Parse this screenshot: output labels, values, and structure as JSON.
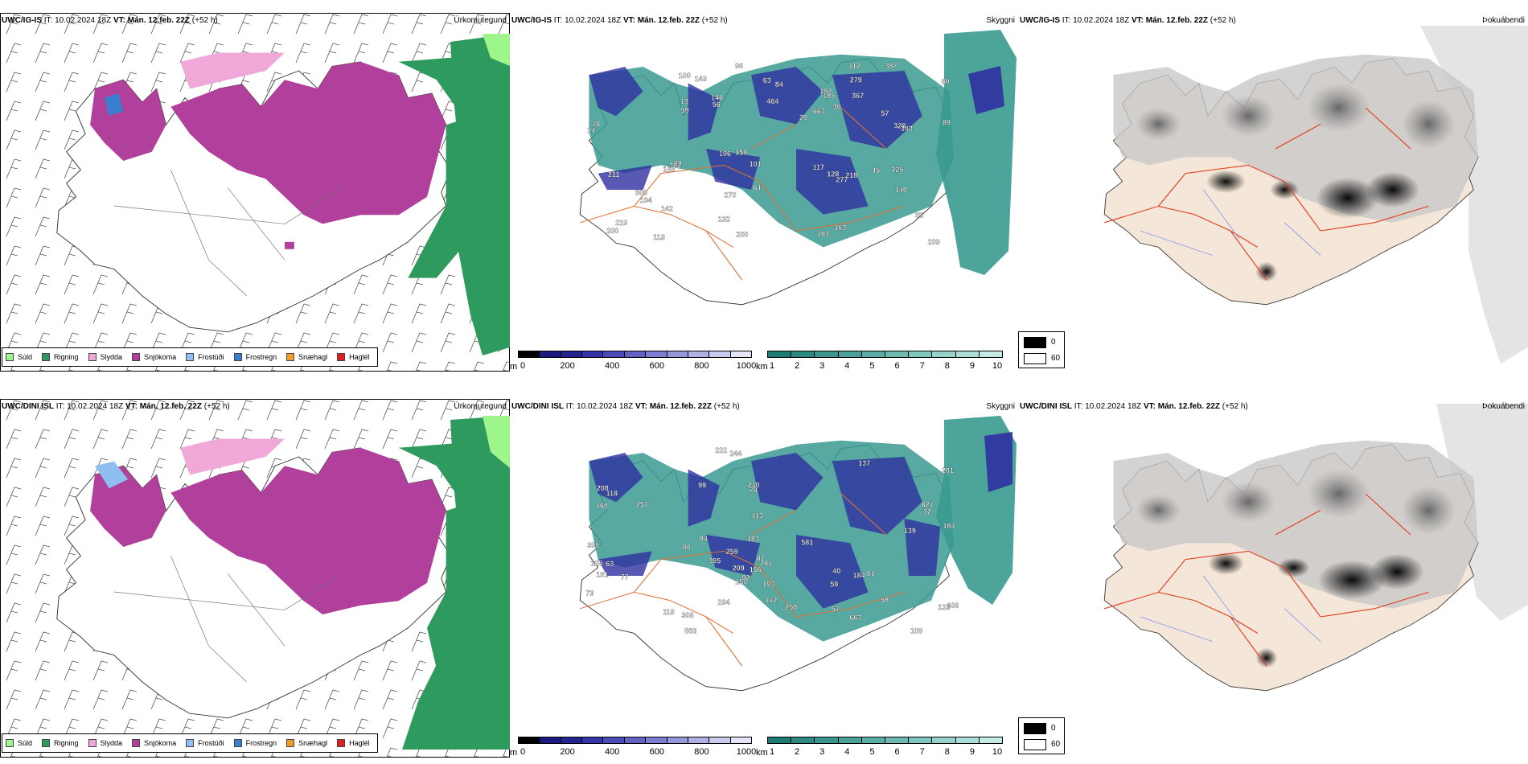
{
  "colors": {
    "sudd": "#9ef58c",
    "rigning": "#2f9a5e",
    "slydda": "#f0a8d8",
    "snjokoma": "#b0409c",
    "frostudi": "#8fbff0",
    "frostregn": "#3a7ed0",
    "snaehagl": "#f49a28",
    "haglel": "#e02020",
    "cloud_teal": "#3a9a90",
    "cloud_blue": "#3030a0",
    "fog_black": "#000000",
    "fog_white": "#ffffff",
    "land": "#f4e6d8",
    "road": "#e07030"
  },
  "rows": [
    {
      "model": "UWC/IG-IS",
      "it_label": "IT:",
      "it_value": "10.02.2024 18Z",
      "vt_label": "VT:",
      "vt_value": "Mán. 12.feb. 22Z",
      "lead": "(+52 h)",
      "precip_title": "Úrkomutegund",
      "cloud_title": "Skyggni",
      "fog_title": "Þokuábendi",
      "cloud_labels": [
        "96",
        "56",
        "13",
        "112",
        "78",
        "30",
        "61",
        "99",
        "159",
        "89",
        "148",
        "57",
        "20",
        "128",
        "113",
        "103",
        "84",
        "55",
        "101",
        "100",
        "59",
        "106",
        "142",
        "117",
        "279",
        "218",
        "143",
        "140",
        "219",
        "192",
        "211",
        "163",
        "80",
        "367",
        "387",
        "663",
        "194",
        "225",
        "209",
        "277",
        "200",
        "302",
        "185",
        "328",
        "343",
        "270",
        "464",
        "308",
        "158",
        "132",
        "200",
        "63",
        "45",
        "14"
      ]
    },
    {
      "model": "UWC/DINI ISL",
      "it_label": "IT:",
      "it_value": "10.02.2024 18Z",
      "vt_label": "VT:",
      "vt_value": "Mán. 12.feb. 22Z",
      "lead": "(+52 h)",
      "precip_title": "Úrkomutegund",
      "cloud_title": "Skyggni",
      "fog_title": "Þokuábendi",
      "cloud_labels": [
        "125",
        "73",
        "57",
        "58",
        "80",
        "156",
        "222",
        "150",
        "109",
        "395",
        "81",
        "99",
        "77",
        "59",
        "63",
        "123",
        "78",
        "87",
        "72",
        "183",
        "139",
        "94",
        "306",
        "581",
        "281",
        "209",
        "201",
        "137",
        "208",
        "395",
        "210",
        "118",
        "160",
        "821",
        "563",
        "259",
        "193",
        "258",
        "184",
        "142",
        "294",
        "244",
        "308",
        "118",
        "663",
        "257",
        "184",
        "191",
        "113",
        "92",
        "40"
      ]
    }
  ],
  "precip_legend": [
    {
      "label": "Súld",
      "color": "#9ef58c"
    },
    {
      "label": "Rigning",
      "color": "#2f9a5e"
    },
    {
      "label": "Slydda",
      "color": "#f0a8d8"
    },
    {
      "label": "Snjókoma",
      "color": "#b0409c"
    },
    {
      "label": "Frostúði",
      "color": "#8fbff0"
    },
    {
      "label": "Frostregn",
      "color": "#3a7ed0"
    },
    {
      "label": "Snæhagl",
      "color": "#f49a28"
    },
    {
      "label": "Haglél",
      "color": "#e02020"
    }
  ],
  "cloudbase_scale": {
    "unit": "m",
    "ticks": [
      "0",
      "200",
      "400",
      "600",
      "800",
      "1000"
    ],
    "colors": [
      "#000000",
      "#1a1a80",
      "#24248f",
      "#3434a8",
      "#4a4ab8",
      "#6262c4",
      "#7c7cd0",
      "#9696da",
      "#b0b0e4",
      "#cacaee",
      "#e4e4f6"
    ]
  },
  "visibility_scale": {
    "unit": "km",
    "ticks": [
      "1",
      "2",
      "3",
      "4",
      "5",
      "6",
      "7",
      "8",
      "9",
      "10"
    ],
    "colors": [
      "#1f7c74",
      "#2b8a82",
      "#3a968e",
      "#4aa29a",
      "#5aaea6",
      "#6cbab2",
      "#80c6be",
      "#96d2ca",
      "#acded8",
      "#c4eae4"
    ]
  },
  "fog_legend": [
    {
      "label": "0",
      "color": "#000000"
    },
    {
      "label": "60",
      "color": "#ffffff"
    }
  ]
}
